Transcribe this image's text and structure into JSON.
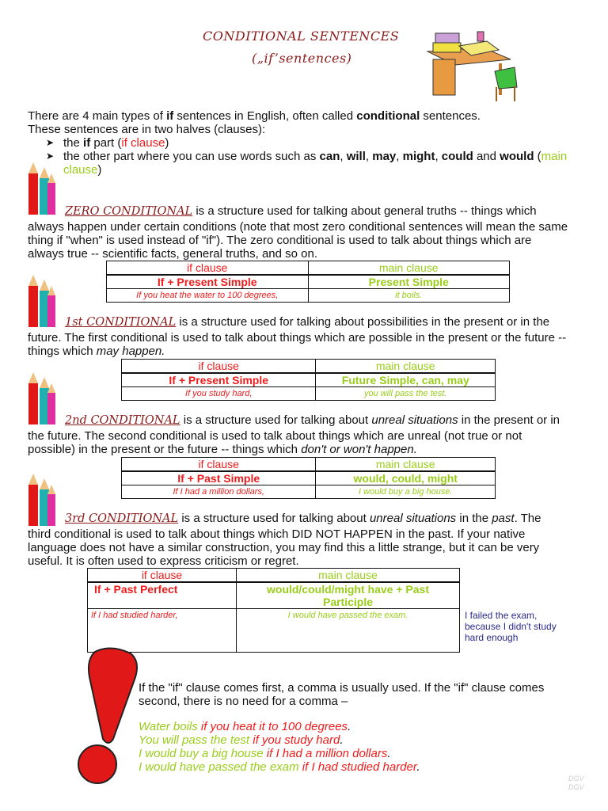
{
  "title": {
    "line1": "CONDITIONAL SENTENCES",
    "line2": "(„if’sentences)"
  },
  "intro": {
    "l1a": "There are 4 main types of ",
    "l1b": "if",
    "l1c": " sentences in English, often called ",
    "l1d": "conditional",
    "l1e": " sentences.",
    "l2": "These sentences are in two halves (clauses):",
    "b1a": "the ",
    "b1b": "if",
    "b1c": " part (",
    "b1d": "if clause",
    "b1e": ")",
    "b2a": "the other part where you can use words such as ",
    "can": "can",
    "will": "will",
    "may": "may",
    "might": "might",
    "could": "could",
    "and": " and ",
    "would": "would",
    "b2b": " (",
    "b2c": "main",
    "b2d": "clause",
    ")": ")"
  },
  "zero": {
    "heading": "ZERO CONDITIONAL",
    "l1": " is a structure used for talking about general truths -- things which",
    "l2": "always happen under certain conditions (note that most zero conditional sentences will mean the same",
    "l3": "thing if \"when\" is used instead of \"if\"). The zero conditional is used to talk about things which are",
    "l4": "always true -- scientific facts, general truths, and so on.",
    "table": {
      "h1": "if clause",
      "h2": "main clause",
      "f1": "If + Present Simple",
      "f2": "Present Simple",
      "e1": "If you heat the water to 100 degrees,",
      "e2": "it boils."
    }
  },
  "first": {
    "heading": "1st CONDITIONAL",
    "l1": " is a structure used for talking about possibilities in the present or in the",
    "l2": "future. The first conditional is used to talk about things which are possible in the present or the future --",
    "l3a": "things which ",
    "l3b": "may happen.",
    "table": {
      "h1": "if clause",
      "h2": "main clause",
      "f1": "If + Present Simple",
      "f2": "Future Simple, can, may",
      "e1": "If you study hard,",
      "e2": "you will pass the test."
    }
  },
  "second": {
    "heading": "2nd CONDITIONAL",
    "l1a": " is a structure used for talking about ",
    "l1b": "unreal situations",
    "l1c": " in the present or in",
    "l2": "the future. The second conditional is used to talk about things which are unreal (not true or not",
    "l3a": "possible) in the present or the future -- things which ",
    "l3b": "don't or won't happen.",
    "table": {
      "h1": "if clause",
      "h2": "main clause",
      "f1": "If + Past Simple",
      "f2": "would, could, might",
      "e1": "If I had a million dollars,",
      "e2": "I would buy a big house."
    }
  },
  "third": {
    "heading": "3rd CONDITIONAL",
    "l1a": " is a structure used for talking about ",
    "l1b": "unreal situations",
    "l1c": " in the ",
    "l1d": "past",
    "l1e": ". The",
    "l2": "third conditional is used to talk about things which DID NOT HAPPEN in the past. If your native",
    "l3": "language does not have a similar construction, you may find this a little strange, but it can be very",
    "l4": "useful. It is often used to express criticism or regret.",
    "table": {
      "h1": "if clause",
      "h2": "main clause",
      "f1": "If + Past Perfect",
      "f2": "would/could/might have + Past Participle",
      "e1": "If I had studied harder,",
      "e2": "I would have passed the exam."
    },
    "note": [
      "I failed the exam,",
      "because I didn't study",
      "hard enough"
    ]
  },
  "comma": {
    "l1": "If the \"if\" clause comes first, a comma is usually used. If the \"if\" clause comes",
    "l2": "second, there is no need for a comma –",
    "examples": [
      {
        "main": "Water boils ",
        "if": "if you heat it to 100 degrees",
        "end": "."
      },
      {
        "main": "You will pass the test ",
        "if": "if you study hard",
        "end": "."
      },
      {
        "main": "I would buy a big house ",
        "if": "if I had a million dollars",
        "end": "."
      },
      {
        "main": "I would have passed the exam ",
        "if": "if I had studied harder",
        "end": "."
      }
    ]
  },
  "watermark": "DGV",
  "colors": {
    "if_clause": "#ee1c1c",
    "main_clause": "#9acd1a",
    "heading": "#8b1a1a",
    "note": "#2a2a8a"
  }
}
